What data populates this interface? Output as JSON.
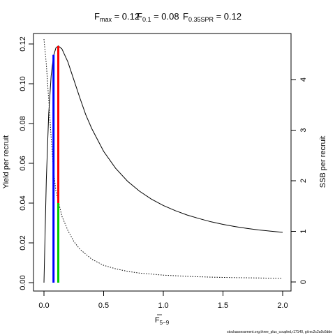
{
  "header": {
    "fmax": {
      "sym": "F",
      "sub": "max",
      "val": " = 0.12"
    },
    "f01": {
      "sym": "F",
      "sub": "0.1",
      "val": " = 0.08"
    },
    "fspr": {
      "sym": "F",
      "sub": "0.35SPR",
      "val": " = 0.12"
    }
  },
  "footer": {
    "caption": "stockassessment.org,three_plus_coupled,r17140, git:ec2c2a0c6dde"
  },
  "chart_data": {
    "type": "line",
    "x_axis": {
      "label_main": "F",
      "label_sub": "5−9",
      "range": [
        0,
        2
      ],
      "ticks": [
        0,
        0.5,
        1,
        1.5,
        2
      ],
      "tick_labels": [
        "0.0",
        "0.5",
        "1.0",
        "1.5",
        "2.0"
      ]
    },
    "y_left": {
      "label": "Yield per recruit",
      "range": [
        0,
        0.12
      ],
      "ticks": [
        0,
        0.02,
        0.04,
        0.06,
        0.08,
        0.1,
        0.12
      ],
      "tick_labels": [
        "0.00",
        "0.02",
        "0.04",
        "0.06",
        "0.08",
        "0.10",
        "0.12"
      ]
    },
    "y_right": {
      "label": "SSB per recruit",
      "range": [
        0,
        4.8
      ],
      "ticks": [
        0,
        1,
        2,
        3,
        4
      ],
      "tick_labels": [
        "0",
        "1",
        "2",
        "3",
        "4"
      ]
    },
    "series": [
      {
        "style": "solid",
        "axis": "left",
        "color": "#000000",
        "points": [
          [
            0,
            0
          ],
          [
            0.02,
            0.052
          ],
          [
            0.04,
            0.085
          ],
          [
            0.06,
            0.104
          ],
          [
            0.08,
            0.114
          ],
          [
            0.1,
            0.118
          ],
          [
            0.12,
            0.119
          ],
          [
            0.15,
            0.1175
          ],
          [
            0.2,
            0.111
          ],
          [
            0.25,
            0.102
          ],
          [
            0.3,
            0.093
          ],
          [
            0.35,
            0.0845
          ],
          [
            0.4,
            0.0775
          ],
          [
            0.5,
            0.066
          ],
          [
            0.6,
            0.0575
          ],
          [
            0.7,
            0.051
          ],
          [
            0.8,
            0.046
          ],
          [
            0.9,
            0.042
          ],
          [
            1.0,
            0.0388
          ],
          [
            1.1,
            0.0362
          ],
          [
            1.2,
            0.034
          ],
          [
            1.3,
            0.0322
          ],
          [
            1.4,
            0.0306
          ],
          [
            1.5,
            0.0293
          ],
          [
            1.6,
            0.0282
          ],
          [
            1.7,
            0.0273
          ],
          [
            1.8,
            0.0265
          ],
          [
            1.9,
            0.0259
          ],
          [
            2.0,
            0.0253
          ]
        ]
      },
      {
        "style": "dotted",
        "axis": "right",
        "color": "#000000",
        "points": [
          [
            0,
            4.8
          ],
          [
            0.02,
            4.3
          ],
          [
            0.04,
            3.6
          ],
          [
            0.06,
            2.85
          ],
          [
            0.08,
            2.2
          ],
          [
            0.1,
            1.8
          ],
          [
            0.12,
            1.6
          ],
          [
            0.15,
            1.3
          ],
          [
            0.2,
            1.02
          ],
          [
            0.25,
            0.8
          ],
          [
            0.3,
            0.65
          ],
          [
            0.4,
            0.45
          ],
          [
            0.5,
            0.33
          ],
          [
            0.6,
            0.26
          ],
          [
            0.7,
            0.21
          ],
          [
            0.8,
            0.175
          ],
          [
            1.0,
            0.135
          ],
          [
            1.2,
            0.11
          ],
          [
            1.4,
            0.095
          ],
          [
            1.6,
            0.085
          ],
          [
            1.8,
            0.078
          ],
          [
            2.0,
            0.072
          ]
        ]
      }
    ],
    "reference_lines": [
      {
        "color": "#0000ff",
        "x": 0.08,
        "axis": "left",
        "from": 0,
        "to": 0.1145
      },
      {
        "color": "#ff0000",
        "x": 0.12,
        "axis": "left",
        "from": 0.04,
        "to": 0.119
      },
      {
        "color": "#00cc00",
        "x": 0.12,
        "axis": "left",
        "from": 0,
        "to": 0.04
      }
    ],
    "grid": false,
    "legend": "none"
  }
}
